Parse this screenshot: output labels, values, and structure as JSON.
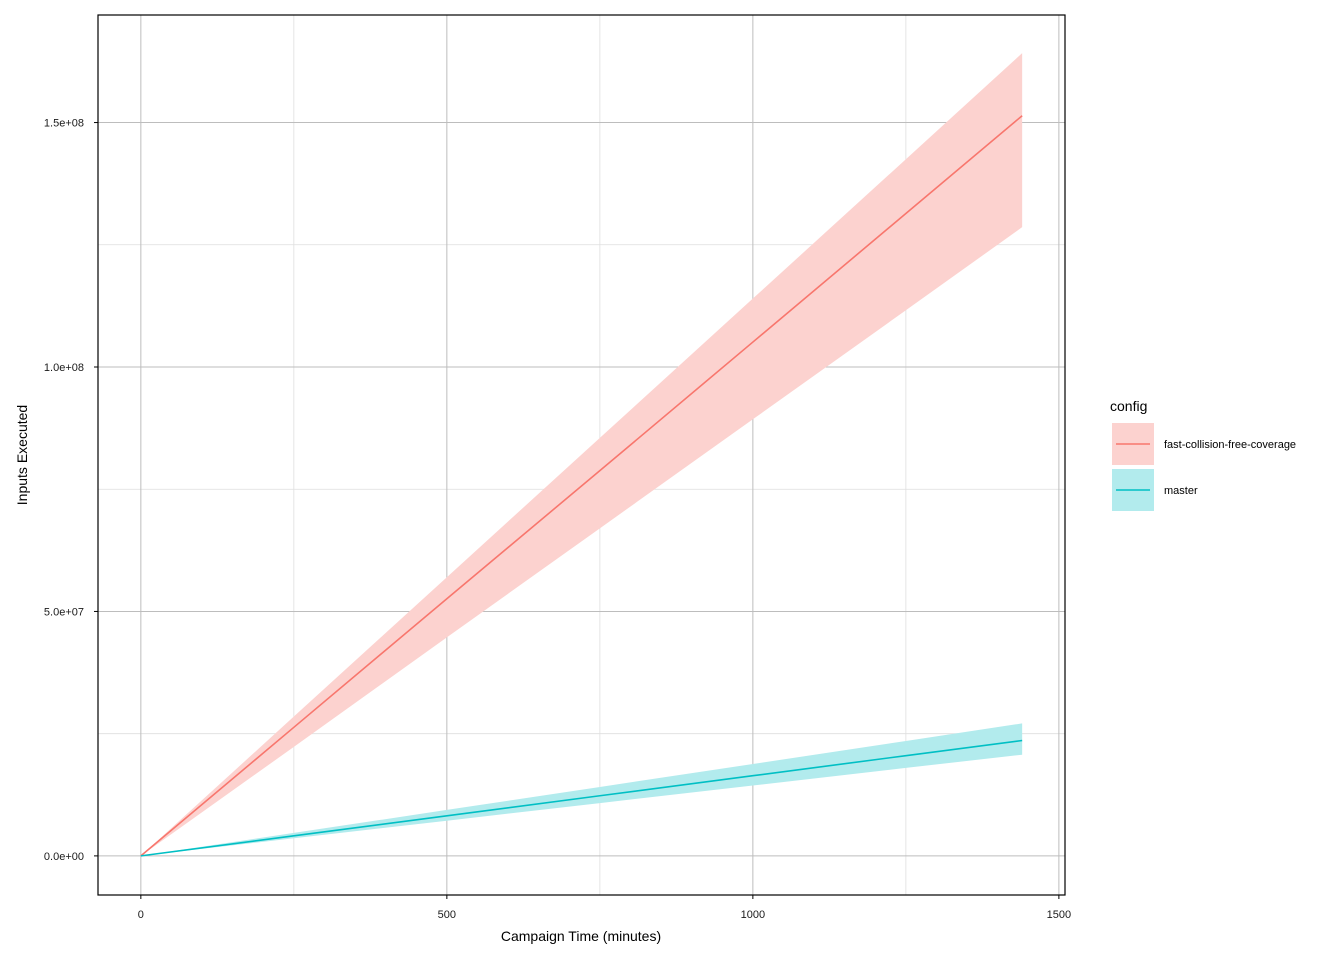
{
  "chart_data": {
    "type": "line",
    "xlabel": "Campaign Time (minutes)",
    "ylabel": "Inputs Executed",
    "xlim": [
      -70,
      1510
    ],
    "ylim": [
      -8000000,
      172000000
    ],
    "x_ticks": [
      0,
      500,
      1000,
      1500
    ],
    "x_tick_labels": [
      "0",
      "500",
      "1000",
      "1500"
    ],
    "y_ticks": [
      0,
      50000000,
      100000000,
      150000000
    ],
    "y_tick_labels": [
      "0.0e+00",
      "5.0e+07",
      "1.0e+08",
      "1.5e+08"
    ],
    "x_minor_ticks": [
      250,
      750,
      1250
    ],
    "y_minor_ticks": [
      25000000,
      75000000,
      125000000
    ],
    "grid": true,
    "legend": {
      "title": "config",
      "position": "right"
    },
    "series": [
      {
        "name": "fast-collision-free-coverage",
        "color": "#F8766D",
        "fill": "#FCD2CF",
        "x": [
          0,
          250,
          500,
          750,
          1000,
          1250,
          1440
        ],
        "y": [
          0,
          26300000,
          52600000,
          78800000,
          105100000,
          131400000,
          151400000
        ],
        "y_lower": [
          0,
          22300000,
          44700000,
          67000000,
          89300000,
          111600000,
          128600000
        ],
        "y_upper": [
          0,
          28500000,
          57000000,
          85500000,
          114000000,
          142500000,
          164200000
        ]
      },
      {
        "name": "master",
        "color": "#00BFC4",
        "fill": "#B2EBED",
        "x": [
          0,
          250,
          500,
          750,
          1000,
          1250,
          1440
        ],
        "y": [
          0,
          4100000,
          8200000,
          12300000,
          16400000,
          20500000,
          23600000
        ],
        "y_lower": [
          0,
          3600000,
          7200000,
          10800000,
          14400000,
          18000000,
          20700000
        ],
        "y_upper": [
          0,
          4700000,
          9400000,
          14100000,
          18800000,
          23500000,
          27100000
        ]
      }
    ]
  }
}
